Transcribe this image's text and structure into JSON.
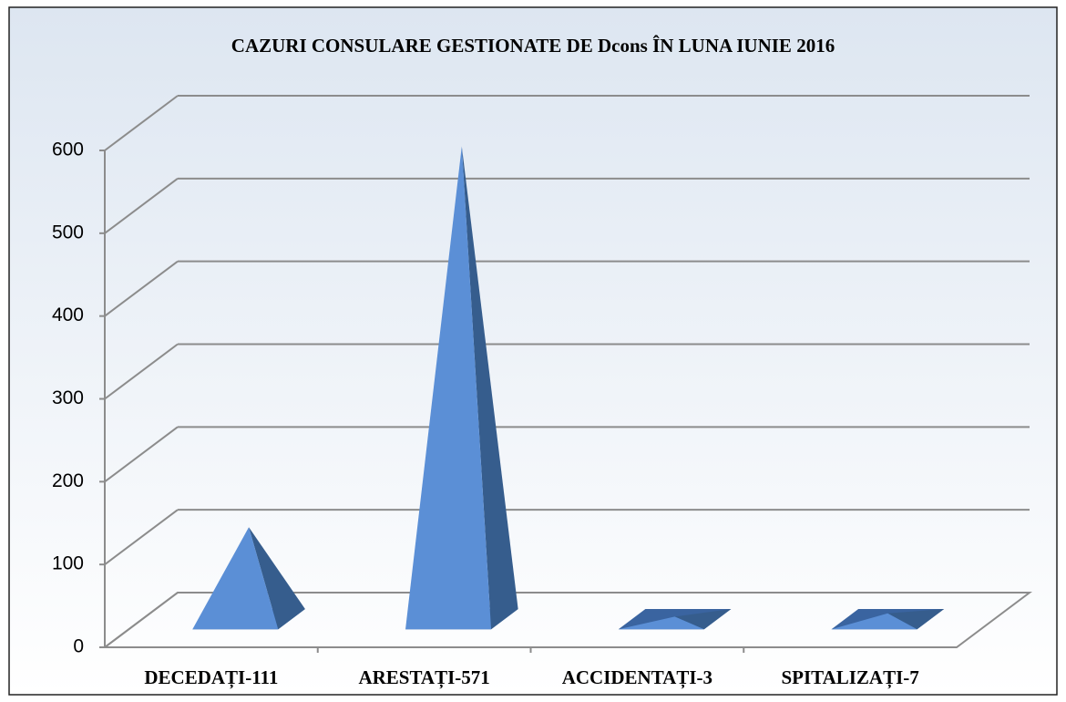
{
  "chart_data": {
    "type": "pyramid3d",
    "title": "CAZURI CONSULARE GESTIONATE DE Dcons ÎN LUNA IUNIE 2016",
    "categories": [
      "DECEDAȚI-111",
      "ARESTAȚI-571",
      "ACCIDENTAȚI-3",
      "SPITALIZAȚI-7"
    ],
    "values": [
      111,
      571,
      3,
      7
    ],
    "color": "#5b8fd6",
    "ylim": [
      0,
      600
    ],
    "yticks": [
      0,
      100,
      200,
      300,
      400,
      500,
      600
    ],
    "grid": true
  }
}
